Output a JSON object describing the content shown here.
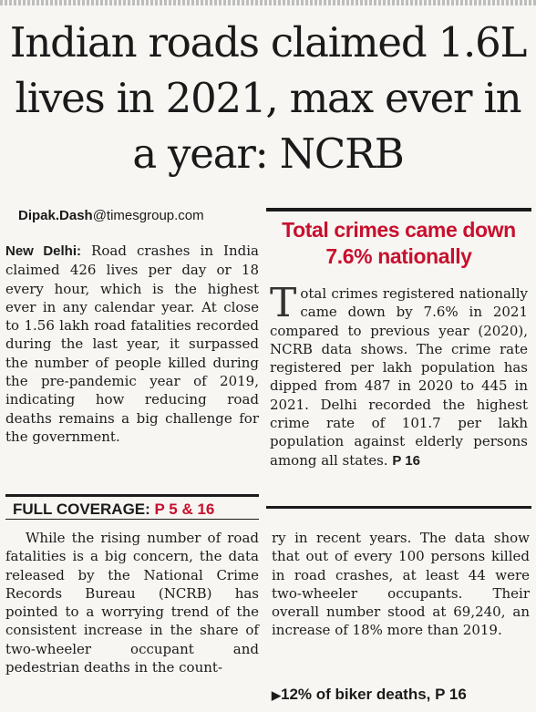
{
  "headline": "Indian roads claimed 1.6L lives in 2021, max ever in a year: NCRB",
  "byline": {
    "name": "Dipak.Dash",
    "domain": "@timesgroup.com"
  },
  "lead": {
    "dateline": "New Delhi:",
    "text": " Road crashes in India claimed 426 lives per day or 18 every hour, which is the highest ever in any calendar year. At close to 1.56 lakh road fatalities recorded during the last year, it surpassed the number of people killed during the pre-pandemic year of 2019, indicating how reducing road deaths remains a big challenge for the government."
  },
  "coverage": {
    "label": "FULL COVERAGE: ",
    "pages": "P 5 & 16"
  },
  "body_left": "While the rising number of road fatalities is a big concern, the data released by the National Crime Records Bureau (NCRB) has pointed to a worrying trend of the consistent increase in the share of two-wheeler occupant and pedestrian deaths in the count-",
  "body_right": "ry in recent years. The data show that out of every 100 persons killed in road crashes, at least 44 were two-wheeler occupants. Their overall number stood at 69,240, an increase of 18% more than 2019.",
  "sidebar": {
    "heading": "Total crimes came down 7.6% nationally",
    "dropcap": "T",
    "text": "otal crimes registered nationally came down by 7.6% in 2021 compared to previous year (2020), NCRB data shows. The crime rate registered per lakh population has dipped from 487 in 2020 to 445 in 2021. Delhi recorded the highest crime rate of 101.7 per lakh population against elderly persons among all states. ",
    "page_ref": "P 16"
  },
  "biker": {
    "arrow": "▶",
    "text": "12% of biker deaths, P 16"
  }
}
